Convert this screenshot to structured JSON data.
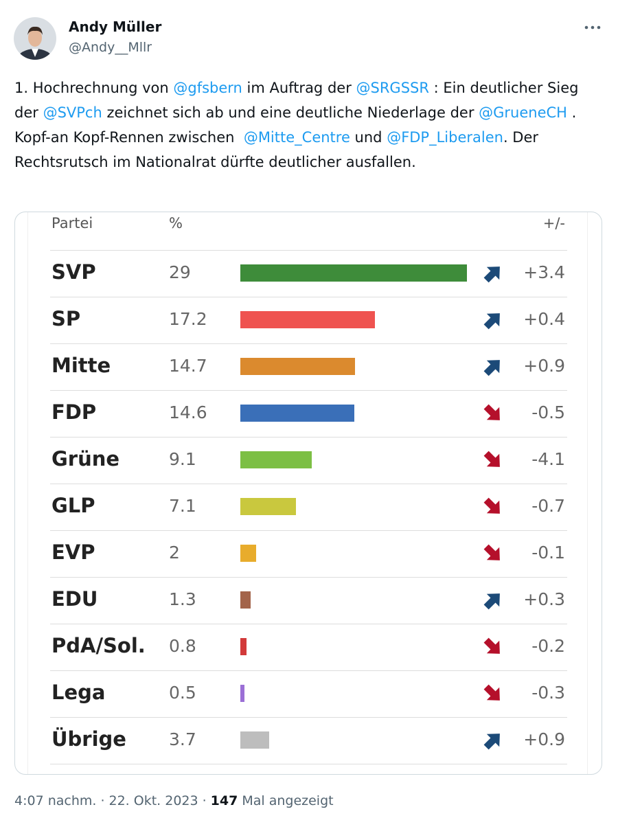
{
  "tweet": {
    "author": {
      "name": "Andy Müller",
      "handle": "@Andy__Mllr"
    },
    "text": [
      "1. Hochrechnung von ",
      "@gfsbern",
      " im Auftrag der ",
      "@SRGSSR",
      " : Ein deutlicher Sieg der ",
      "@SVPch",
      " zeichnet sich ab und eine deutliche Niederlage der ",
      "@GrueneCH",
      " . Kopf-an Kopf-Rennen zwischen  ",
      "@Mitte_Centre",
      " und ",
      "@FDP_Liberalen",
      ". Der Rechtsrutsch im Nationalrat dürfte deutlicher ausfallen."
    ],
    "footer": {
      "time": "4:07 nachm.",
      "date": "22. Okt. 2023",
      "views": "147",
      "views_label": "Mal angezeigt"
    }
  },
  "table": {
    "header": [
      "Partei",
      "%",
      "+/-"
    ],
    "rows": [
      {
        "party": "SVP",
        "percent": 29,
        "change": "+3.4",
        "color": "#3e8c3a"
      },
      {
        "party": "SP",
        "percent": 17.2,
        "change": "+0.4",
        "color": "#ef5350"
      },
      {
        "party": "Mitte",
        "percent": 14.7,
        "change": "+0.9",
        "color": "#db8a2e"
      },
      {
        "party": "FDP",
        "percent": 14.6,
        "change": "-0.5",
        "color": "#3a6fb8"
      },
      {
        "party": "Grüne",
        "percent": 9.1,
        "change": "-4.1",
        "color": "#7cbf44"
      },
      {
        "party": "GLP",
        "percent": 7.1,
        "change": "-0.7",
        "color": "#c9c83e"
      },
      {
        "party": "EVP",
        "percent": 2,
        "change": "-0.1",
        "color": "#e8ac2c"
      },
      {
        "party": "EDU",
        "percent": 1.3,
        "change": "+0.3",
        "color": "#a3644a"
      },
      {
        "party": "PdA/Sol.",
        "percent": 0.8,
        "change": "-0.2",
        "color": "#d23a3a"
      },
      {
        "party": "Lega",
        "percent": 0.5,
        "change": "-0.3",
        "color": "#9b6fd6"
      },
      {
        "party": "Übrige",
        "percent": 3.7,
        "change": "+0.9",
        "color": "#bdbdbd"
      }
    ]
  }
}
